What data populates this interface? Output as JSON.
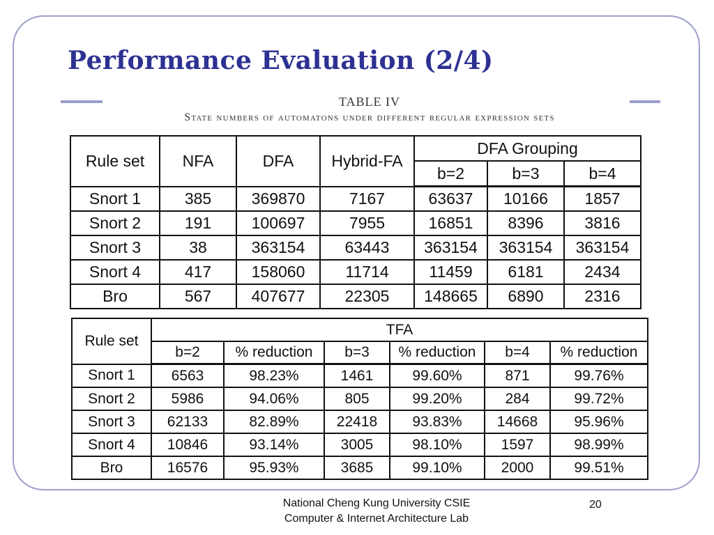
{
  "slide": {
    "title": "Performance Evaluation (2/4)",
    "page_number": "20"
  },
  "footer": {
    "line1": "National Cheng Kung University CSIE",
    "line2": "Computer & Internet Architecture Lab"
  },
  "table4": {
    "caption_number": "TABLE IV",
    "caption_text": "State numbers of automatons under different regular expression sets",
    "headers": {
      "rule_set": "Rule set",
      "nfa": "NFA",
      "dfa": "DFA",
      "hybrid": "Hybrid-FA",
      "grouping": "DFA Grouping",
      "b2": "b=2",
      "b3": "b=3",
      "b4": "b=4"
    },
    "rows": [
      {
        "rule": "Snort 1",
        "nfa": "385",
        "dfa": "369870",
        "hybrid": "7167",
        "b2": "63637",
        "b3": "10166",
        "b4": "1857"
      },
      {
        "rule": "Snort 2",
        "nfa": "191",
        "dfa": "100697",
        "hybrid": "7955",
        "b2": "16851",
        "b3": "8396",
        "b4": "3816"
      },
      {
        "rule": "Snort 3",
        "nfa": "38",
        "dfa": "363154",
        "hybrid": "63443",
        "b2": "363154",
        "b3": "363154",
        "b4": "363154"
      },
      {
        "rule": "Snort 4",
        "nfa": "417",
        "dfa": "158060",
        "hybrid": "11714",
        "b2": "11459",
        "b3": "6181",
        "b4": "2434"
      },
      {
        "rule": "Bro",
        "nfa": "567",
        "dfa": "407677",
        "hybrid": "22305",
        "b2": "148665",
        "b3": "6890",
        "b4": "2316"
      }
    ]
  },
  "table5": {
    "headers": {
      "rule_set": "Rule set",
      "tfa": "TFA",
      "b2": "b=2",
      "b3": "b=3",
      "b4": "b=4",
      "reduction": "% reduction"
    },
    "rows": [
      {
        "rule": "Snort 1",
        "b2": "6563",
        "r2": "98.23%",
        "b3": "1461",
        "r3": "99.60%",
        "b4": "871",
        "r4": "99.76%"
      },
      {
        "rule": "Snort 2",
        "b2": "5986",
        "r2": "94.06%",
        "b3": "805",
        "r3": "99.20%",
        "b4": "284",
        "r4": "99.72%"
      },
      {
        "rule": "Snort 3",
        "b2": "62133",
        "r2": "82.89%",
        "b3": "22418",
        "r3": "93.83%",
        "b4": "14668",
        "r4": "95.96%"
      },
      {
        "rule": "Snort 4",
        "b2": "10846",
        "r2": "93.14%",
        "b3": "3005",
        "r3": "98.10%",
        "b4": "1597",
        "r4": "98.99%"
      },
      {
        "rule": "Bro",
        "b2": "16576",
        "r2": "95.93%",
        "b3": "3685",
        "r3": "99.10%",
        "b4": "2000",
        "r4": "99.51%"
      }
    ]
  }
}
